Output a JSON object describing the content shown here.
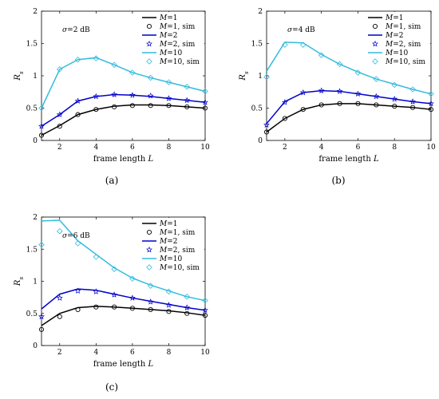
{
  "chart_data": [
    {
      "type": "line",
      "caption": "(a)",
      "annotation": "σ=2 dB",
      "xlabel": "frame length L",
      "ylabel": "R_s",
      "xlim": [
        1,
        10
      ],
      "ylim": [
        0,
        2
      ],
      "xticks": [
        "2",
        "4",
        "6",
        "8",
        "10"
      ],
      "yticks": [
        "0",
        "0.5",
        "1",
        "1.5",
        "2"
      ],
      "x": [
        1,
        2,
        3,
        4,
        5,
        6,
        7,
        8,
        9,
        10
      ],
      "legend_position": "top-right",
      "series": [
        {
          "name": "M=1",
          "kind": "line",
          "color": "#000000",
          "values": [
            0.08,
            0.23,
            0.4,
            0.48,
            0.53,
            0.55,
            0.55,
            0.54,
            0.52,
            0.5
          ]
        },
        {
          "name": "M=1, sim",
          "kind": "marker",
          "marker": "circle",
          "color": "#000000",
          "values": [
            0.08,
            0.22,
            0.4,
            0.48,
            0.52,
            0.54,
            0.54,
            0.54,
            0.52,
            0.5
          ]
        },
        {
          "name": "M=2",
          "kind": "line",
          "color": "#0000cc",
          "values": [
            0.22,
            0.4,
            0.61,
            0.68,
            0.71,
            0.7,
            0.68,
            0.65,
            0.62,
            0.59
          ]
        },
        {
          "name": "M=2, sim",
          "kind": "marker",
          "marker": "star",
          "color": "#0000cc",
          "values": [
            0.22,
            0.4,
            0.61,
            0.68,
            0.71,
            0.7,
            0.69,
            0.65,
            0.62,
            0.59
          ]
        },
        {
          "name": "M=10",
          "kind": "line",
          "color": "#33bbdd",
          "values": [
            0.5,
            1.1,
            1.25,
            1.28,
            1.17,
            1.05,
            0.97,
            0.9,
            0.83,
            0.76
          ]
        },
        {
          "name": "M=10, sim",
          "kind": "marker",
          "marker": "diamond",
          "color": "#33bbdd",
          "values": [
            0.5,
            1.1,
            1.25,
            1.27,
            1.17,
            1.05,
            0.97,
            0.9,
            0.83,
            0.76
          ]
        }
      ]
    },
    {
      "type": "line",
      "caption": "(b)",
      "annotation": "σ=4 dB",
      "xlabel": "frame length L",
      "ylabel": "R_s",
      "xlim": [
        1,
        10
      ],
      "ylim": [
        0,
        2
      ],
      "xticks": [
        "2",
        "4",
        "6",
        "8",
        "10"
      ],
      "yticks": [
        "0",
        "0.5",
        "1",
        "1.5",
        "2"
      ],
      "x": [
        1,
        2,
        3,
        4,
        5,
        6,
        7,
        8,
        9,
        10
      ],
      "legend_position": "top-right",
      "series": [
        {
          "name": "M=1",
          "kind": "line",
          "color": "#000000",
          "values": [
            0.13,
            0.34,
            0.48,
            0.55,
            0.57,
            0.57,
            0.55,
            0.53,
            0.51,
            0.48
          ]
        },
        {
          "name": "M=1, sim",
          "kind": "marker",
          "marker": "circle",
          "color": "#000000",
          "values": [
            0.13,
            0.34,
            0.48,
            0.55,
            0.57,
            0.57,
            0.55,
            0.53,
            0.51,
            0.48
          ]
        },
        {
          "name": "M=2",
          "kind": "line",
          "color": "#0000cc",
          "values": [
            0.26,
            0.6,
            0.74,
            0.77,
            0.76,
            0.72,
            0.68,
            0.64,
            0.6,
            0.57
          ]
        },
        {
          "name": "M=2, sim",
          "kind": "marker",
          "marker": "star",
          "color": "#0000cc",
          "values": [
            0.24,
            0.59,
            0.74,
            0.77,
            0.76,
            0.72,
            0.68,
            0.64,
            0.6,
            0.57
          ]
        },
        {
          "name": "M=10",
          "kind": "line",
          "color": "#33bbdd",
          "values": [
            1.07,
            1.52,
            1.51,
            1.33,
            1.18,
            1.06,
            0.95,
            0.87,
            0.79,
            0.72
          ]
        },
        {
          "name": "M=10, sim",
          "kind": "marker",
          "marker": "diamond",
          "color": "#33bbdd",
          "values": [
            0.98,
            1.48,
            1.48,
            1.32,
            1.18,
            1.05,
            0.95,
            0.86,
            0.79,
            0.72
          ]
        }
      ]
    },
    {
      "type": "line",
      "caption": "(c)",
      "annotation": "σ=6 dB",
      "xlabel": "frame length L",
      "ylabel": "R_s",
      "xlim": [
        1,
        10
      ],
      "ylim": [
        0,
        2
      ],
      "xticks": [
        "2",
        "4",
        "6",
        "8",
        "10"
      ],
      "yticks": [
        "0",
        "0.5",
        "1",
        "1.5",
        "2"
      ],
      "x": [
        1,
        2,
        3,
        4,
        5,
        6,
        7,
        8,
        9,
        10
      ],
      "legend_position": "top-right",
      "series": [
        {
          "name": "M=1",
          "kind": "line",
          "color": "#000000",
          "values": [
            0.31,
            0.5,
            0.59,
            0.61,
            0.6,
            0.58,
            0.56,
            0.54,
            0.51,
            0.47
          ]
        },
        {
          "name": "M=1, sim",
          "kind": "marker",
          "marker": "circle",
          "color": "#000000",
          "values": [
            0.25,
            0.45,
            0.56,
            0.6,
            0.6,
            0.58,
            0.56,
            0.53,
            0.5,
            0.47
          ]
        },
        {
          "name": "M=2",
          "kind": "line",
          "color": "#0000cc",
          "values": [
            0.57,
            0.8,
            0.88,
            0.86,
            0.8,
            0.74,
            0.69,
            0.64,
            0.59,
            0.55
          ]
        },
        {
          "name": "M=2, sim",
          "kind": "marker",
          "marker": "star",
          "color": "#0000cc",
          "values": [
            0.45,
            0.74,
            0.85,
            0.84,
            0.79,
            0.74,
            0.68,
            0.63,
            0.59,
            0.55
          ]
        },
        {
          "name": "M=10",
          "kind": "line",
          "color": "#33bbdd",
          "values": [
            1.94,
            1.95,
            1.63,
            1.42,
            1.21,
            1.05,
            0.94,
            0.85,
            0.76,
            0.7
          ]
        },
        {
          "name": "M=10, sim",
          "kind": "marker",
          "marker": "diamond",
          "color": "#33bbdd",
          "values": [
            1.57,
            1.78,
            1.59,
            1.38,
            1.19,
            1.04,
            0.93,
            0.84,
            0.76,
            0.7
          ]
        }
      ]
    }
  ]
}
